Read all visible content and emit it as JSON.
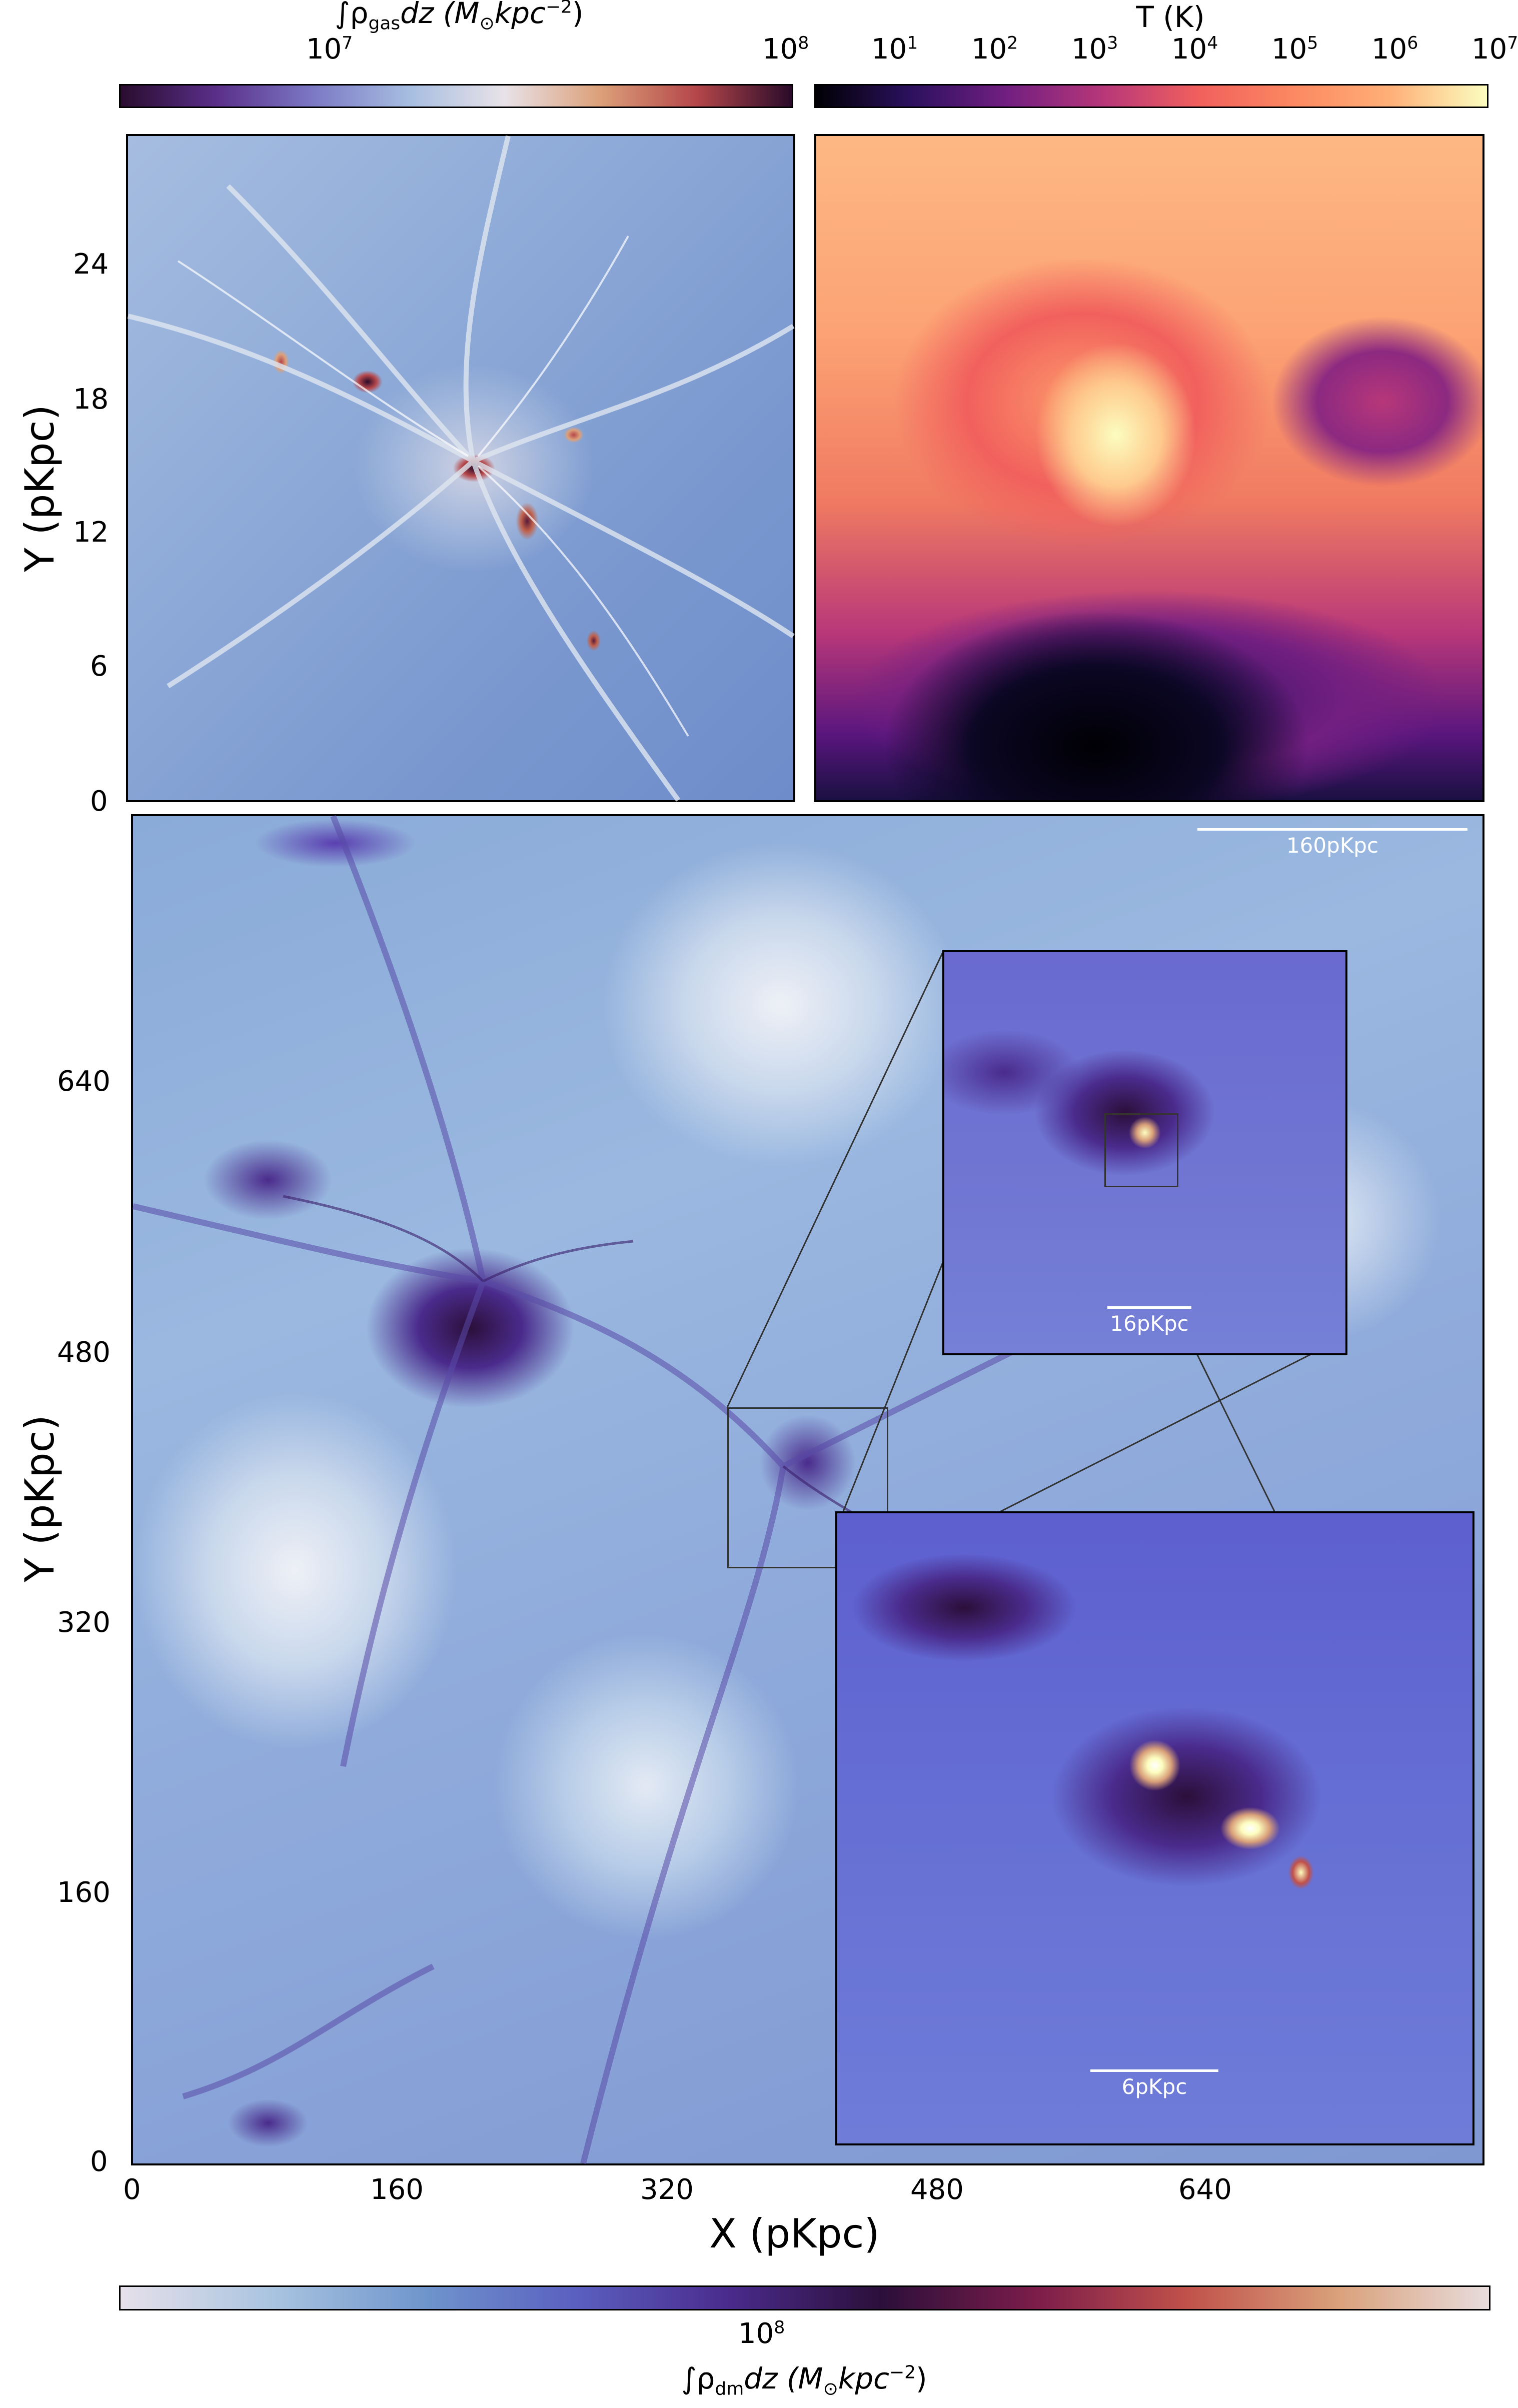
{
  "gas_colorbar": {
    "label_main": "∫ρ",
    "label_sub": "gas",
    "label_units": "dz (M",
    "label_sun": "⊙",
    "label_units_2": "kpc",
    "label_exp": "−2",
    "label_close": ")",
    "tick_7": "10",
    "tick_7_exp": "7",
    "tick_8": "10",
    "tick_8_exp": "8",
    "colors": [
      "#2a0c2e",
      "#5a2f8a",
      "#7b78c4",
      "#a6bde0",
      "#e8e2e8",
      "#dca07a",
      "#b5474a",
      "#2a0b2a"
    ]
  },
  "temp_colorbar": {
    "label": "T (K)",
    "ticks": [
      {
        "base": "10",
        "exp": "1"
      },
      {
        "base": "10",
        "exp": "2"
      },
      {
        "base": "10",
        "exp": "3"
      },
      {
        "base": "10",
        "exp": "4"
      },
      {
        "base": "10",
        "exp": "5"
      },
      {
        "base": "10",
        "exp": "6"
      },
      {
        "base": "10",
        "exp": "7"
      }
    ],
    "colors": [
      "#000004",
      "#2c115f",
      "#721f81",
      "#b73779",
      "#f1605d",
      "#fc8961",
      "#feb078",
      "#fcfdbf"
    ]
  },
  "top_left_panel": {
    "y_axis_title": "Y (pKpc)",
    "y_ticks": [
      "24",
      "18",
      "12",
      "6",
      "0"
    ]
  },
  "main_panel": {
    "y_axis_title": "Y (pKpc)",
    "x_axis_title": "X (pKpc)",
    "y_ticks": [
      "640",
      "480",
      "320",
      "160",
      "0"
    ],
    "x_ticks": [
      "0",
      "160",
      "320",
      "480",
      "640"
    ],
    "scalebar": "160pKpc"
  },
  "inset_1": {
    "scalebar": "16pKpc"
  },
  "inset_2": {
    "scalebar": "6pKpc"
  },
  "dm_colorbar": {
    "label_main": "∫ρ",
    "label_sub": "dm",
    "label_units": "dz (M",
    "label_sun": "⊙",
    "label_units_2": "kpc",
    "label_exp": "−2",
    "label_close": ")",
    "tick_8": "10",
    "tick_8_exp": "8",
    "colors": [
      "#e6e0ea",
      "#a9c4e0",
      "#6f95cc",
      "#5a5fc0",
      "#4a2b8c",
      "#2b0f3a",
      "#7a1c4a",
      "#c0504a",
      "#d9a07a",
      "#e8dcdc"
    ]
  },
  "icons": [
    "scale-bar",
    "zoom-connector"
  ]
}
